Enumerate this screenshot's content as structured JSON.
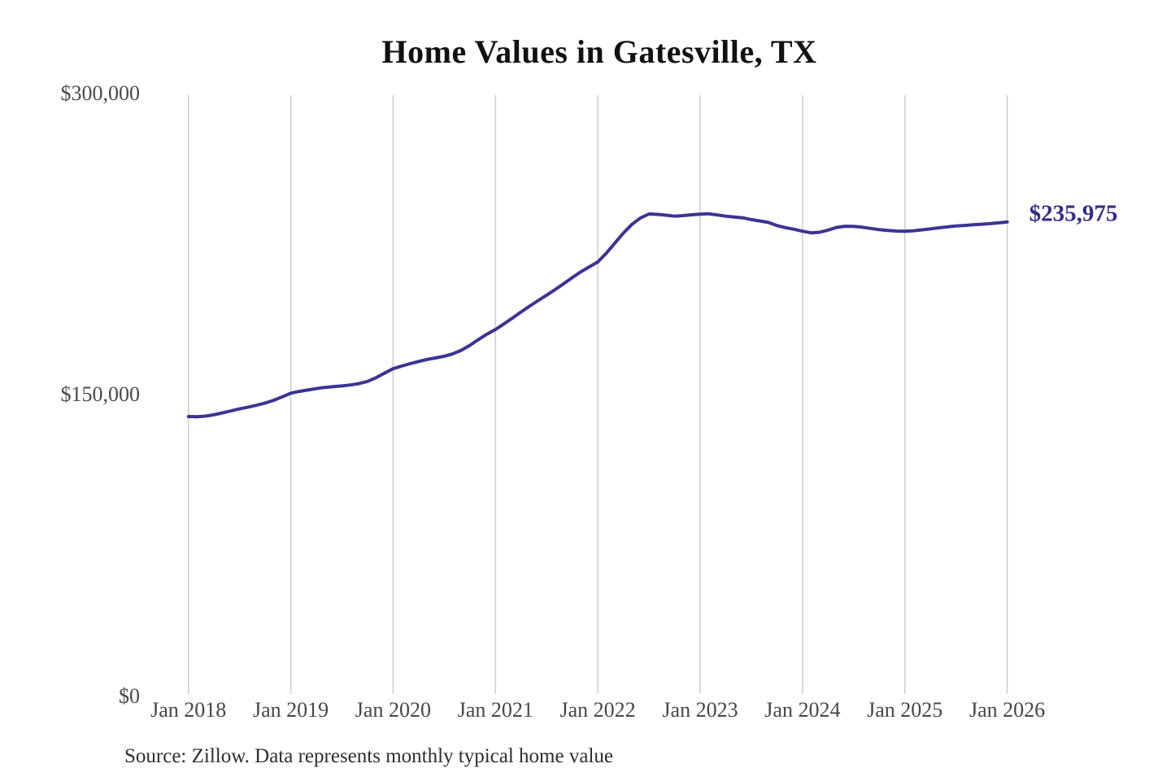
{
  "page": {
    "background_color": "#ffffff"
  },
  "colors": {
    "line": "#3b3494",
    "end_label": "#322c8d",
    "grid": "#cccccc",
    "axis_text": "#4a4a4a",
    "title_text": "#111111",
    "source_text": "#2e2e2e"
  },
  "source": {
    "text": "Source: Zillow. Data represents monthly typical home value"
  },
  "chart_data": {
    "type": "line",
    "title": "Home Values in Gatesville, TX",
    "series_name": "Monthly typical home value",
    "xlabel": "",
    "ylabel": "",
    "ylim": [
      0,
      300000
    ],
    "grid": "vertical-only",
    "legend": "none",
    "end_label": "$235,975",
    "end_value": 235975,
    "x_start_month": "2018-01",
    "x_frequency": "monthly",
    "x_tick_labels": [
      "Jan 2018",
      "Jan 2019",
      "Jan 2020",
      "Jan 2021",
      "Jan 2022",
      "Jan 2023",
      "Jan 2024",
      "Jan 2025",
      "Jan 2026"
    ],
    "y_ticks": [
      {
        "label": "$0",
        "value": 0
      },
      {
        "label": "$150,000",
        "value": 150000
      },
      {
        "label": "$300,000",
        "value": 300000
      }
    ],
    "values": [
      139200,
      139100,
      139400,
      140100,
      141000,
      142000,
      143000,
      143900,
      144800,
      145900,
      147300,
      149000,
      150800,
      151700,
      152400,
      153100,
      153700,
      154100,
      154400,
      154900,
      155600,
      156700,
      158500,
      160800,
      163000,
      164300,
      165500,
      166600,
      167600,
      168400,
      169200,
      170400,
      172200,
      174600,
      177500,
      180200,
      182500,
      185300,
      188200,
      191200,
      194100,
      196900,
      199600,
      202400,
      205300,
      208300,
      211200,
      213700,
      216100,
      220500,
      225500,
      230500,
      234800,
      238000,
      240000,
      239800,
      239400,
      238900,
      239200,
      239600,
      239900,
      240100,
      239500,
      238900,
      238500,
      238100,
      237200,
      236500,
      235800,
      234200,
      233200,
      232400,
      231400,
      230600,
      230900,
      232000,
      233300,
      233900,
      233800,
      233400,
      232800,
      232200,
      231800,
      231500,
      231400,
      231600,
      232100,
      232600,
      233100,
      233600,
      234000,
      234300,
      234600,
      234900,
      235200,
      235600,
      235975
    ]
  }
}
